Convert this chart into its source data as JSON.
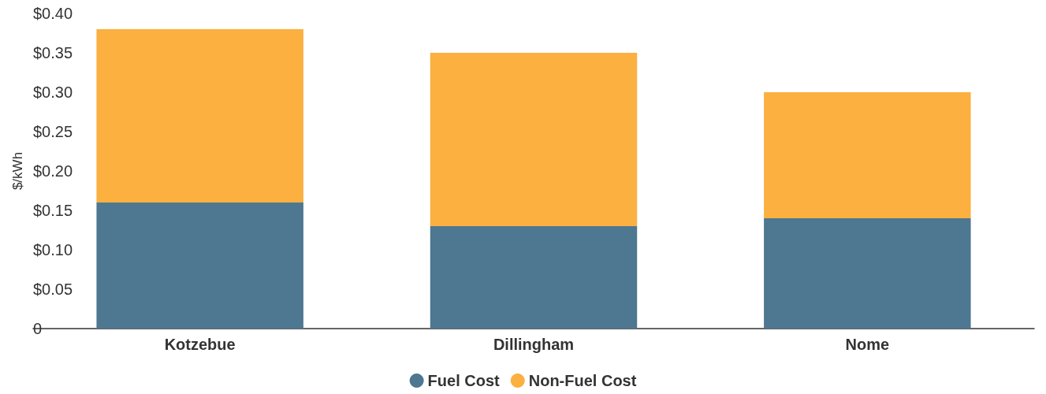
{
  "chart_data": {
    "type": "bar",
    "stacked": true,
    "ylabel": "$/kWh",
    "categories": [
      "Kotzebue",
      "Dillingham",
      "Nome"
    ],
    "series": [
      {
        "name": "Fuel Cost",
        "color": "#4e7791",
        "values": [
          0.16,
          0.13,
          0.14
        ]
      },
      {
        "name": "Non-Fuel Cost",
        "color": "#fbb040",
        "values": [
          0.22,
          0.22,
          0.16
        ]
      }
    ],
    "ylim": [
      0,
      0.4
    ],
    "yticks": [
      {
        "value": 0,
        "label": "0"
      },
      {
        "value": 0.05,
        "label": "$0.05"
      },
      {
        "value": 0.1,
        "label": "$0.10"
      },
      {
        "value": 0.15,
        "label": "$0.15"
      },
      {
        "value": 0.2,
        "label": "$0.20"
      },
      {
        "value": 0.25,
        "label": "$0.25"
      },
      {
        "value": 0.3,
        "label": "$0.30"
      },
      {
        "value": 0.35,
        "label": "$0.35"
      },
      {
        "value": 0.4,
        "label": "$0.40"
      }
    ],
    "grid": false,
    "legend": "bottom"
  }
}
